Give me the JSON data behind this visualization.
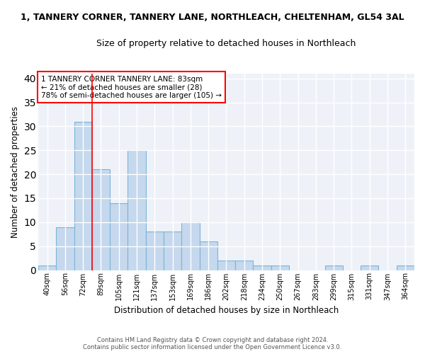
{
  "title": "1, TANNERY CORNER, TANNERY LANE, NORTHLEACH, CHELTENHAM, GL54 3AL",
  "subtitle": "Size of property relative to detached houses in Northleach",
  "xlabel": "Distribution of detached houses by size in Northleach",
  "ylabel": "Number of detached properties",
  "bar_color": "#c5d8ed",
  "bar_edge_color": "#7ab4d8",
  "categories": [
    "40sqm",
    "56sqm",
    "72sqm",
    "89sqm",
    "105sqm",
    "121sqm",
    "137sqm",
    "153sqm",
    "169sqm",
    "186sqm",
    "202sqm",
    "218sqm",
    "234sqm",
    "250sqm",
    "267sqm",
    "283sqm",
    "299sqm",
    "315sqm",
    "331sqm",
    "347sqm",
    "364sqm"
  ],
  "values": [
    1,
    9,
    31,
    21,
    14,
    25,
    8,
    8,
    10,
    6,
    2,
    2,
    1,
    1,
    0,
    0,
    1,
    0,
    1,
    0,
    1
  ],
  "ylim": [
    0,
    41
  ],
  "yticks": [
    0,
    5,
    10,
    15,
    20,
    25,
    30,
    35,
    40
  ],
  "red_line_x": 2.5,
  "annotation_line1": "1 TANNERY CORNER TANNERY LANE: 83sqm",
  "annotation_line2": "← 21% of detached houses are smaller (28)",
  "annotation_line3": "78% of semi-detached houses are larger (105) →",
  "background_color": "#eef2f8",
  "grid_color": "#ffffff",
  "footer_line1": "Contains HM Land Registry data © Crown copyright and database right 2024.",
  "footer_line2": "Contains public sector information licensed under the Open Government Licence v3.0."
}
